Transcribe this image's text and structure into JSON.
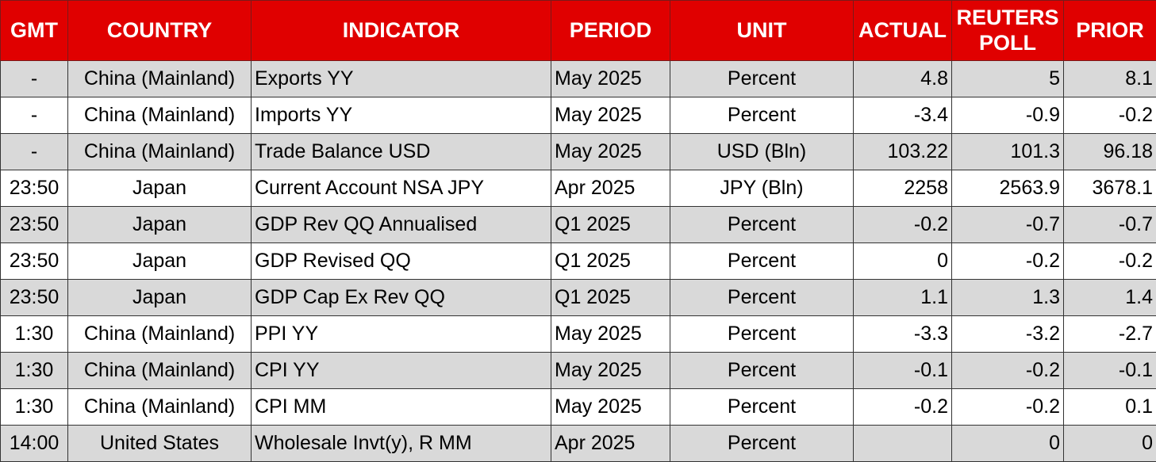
{
  "table": {
    "headers": [
      "GMT",
      "COUNTRY",
      "INDICATOR",
      "PERIOD",
      "UNIT",
      "ACTUAL",
      "REUTERS POLL",
      "PRIOR"
    ],
    "rows": [
      {
        "gmt": "-",
        "country": "China (Mainland)",
        "indicator": "Exports YY",
        "period": "May 2025",
        "unit": "Percent",
        "actual": "4.8",
        "poll": "5",
        "prior": "8.1"
      },
      {
        "gmt": "-",
        "country": "China (Mainland)",
        "indicator": "Imports YY",
        "period": "May 2025",
        "unit": "Percent",
        "actual": "-3.4",
        "poll": "-0.9",
        "prior": "-0.2"
      },
      {
        "gmt": "-",
        "country": "China (Mainland)",
        "indicator": "Trade Balance USD",
        "period": "May 2025",
        "unit": "USD (Bln)",
        "actual": "103.22",
        "poll": "101.3",
        "prior": "96.18"
      },
      {
        "gmt": "23:50",
        "country": "Japan",
        "indicator": "Current Account NSA JPY",
        "period": "Apr 2025",
        "unit": "JPY (Bln)",
        "actual": "2258",
        "poll": "2563.9",
        "prior": "3678.1"
      },
      {
        "gmt": "23:50",
        "country": "Japan",
        "indicator": "GDP Rev QQ Annualised",
        "period": "Q1 2025",
        "unit": "Percent",
        "actual": "-0.2",
        "poll": "-0.7",
        "prior": "-0.7"
      },
      {
        "gmt": "23:50",
        "country": "Japan",
        "indicator": "GDP Revised QQ",
        "period": "Q1 2025",
        "unit": "Percent",
        "actual": "0",
        "poll": "-0.2",
        "prior": "-0.2"
      },
      {
        "gmt": "23:50",
        "country": "Japan",
        "indicator": "GDP Cap Ex Rev QQ",
        "period": "Q1 2025",
        "unit": "Percent",
        "actual": "1.1",
        "poll": "1.3",
        "prior": "1.4"
      },
      {
        "gmt": "1:30",
        "country": "China (Mainland)",
        "indicator": "PPI YY",
        "period": "May 2025",
        "unit": "Percent",
        "actual": "-3.3",
        "poll": "-3.2",
        "prior": "-2.7"
      },
      {
        "gmt": "1:30",
        "country": "China (Mainland)",
        "indicator": "CPI YY",
        "period": "May 2025",
        "unit": "Percent",
        "actual": "-0.1",
        "poll": "-0.2",
        "prior": "-0.1"
      },
      {
        "gmt": "1:30",
        "country": "China (Mainland)",
        "indicator": "CPI MM",
        "period": "May 2025",
        "unit": "Percent",
        "actual": "-0.2",
        "poll": "-0.2",
        "prior": "0.1"
      },
      {
        "gmt": "14:00",
        "country": "United States",
        "indicator": "Wholesale Invt(y), R MM",
        "period": "Apr 2025",
        "unit": "Percent",
        "actual": "",
        "poll": "0",
        "prior": "0"
      }
    ]
  },
  "colors": {
    "header_bg": "#e00000",
    "header_text": "#ffffff",
    "row_shaded": "#d9d9d9",
    "row_plain": "#ffffff"
  }
}
